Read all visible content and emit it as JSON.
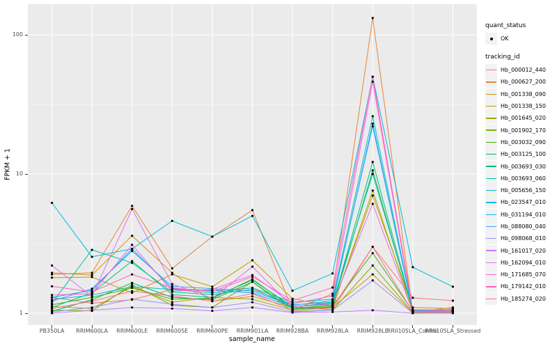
{
  "chart": {
    "y_axis_title": "FPKM + 1",
    "x_axis_title": "sample_name"
  },
  "legend": {
    "quant_status_title": "quant_status",
    "quant_status_items": [
      {
        "label": "OK",
        "marker": "point-icon"
      }
    ],
    "tracking_id_title": "tracking_id"
  },
  "chart_data": {
    "type": "line",
    "title": "",
    "xlabel": "sample_name",
    "ylabel": "FPKM + 1",
    "y_scale": "log10",
    "y_ticks": [
      1,
      10,
      100
    ],
    "minor_y_ticks": [
      3.162,
      31.62
    ],
    "ylim": [
      0.83,
      160
    ],
    "grid": true,
    "legend_position": "right",
    "panel_bg": "#EBEBEB",
    "grid_color": "#FFFFFF",
    "tick_text_color": "#4D4D4D",
    "point_color": "#000000",
    "quant_status": "OK",
    "categories": [
      "PB350LA",
      "RRIM600LA",
      "RRIM600LE",
      "RRIM600SE",
      "RRIM600PE",
      "RRIM901LA",
      "RRIM928BA",
      "RRIM928LA",
      "RRIM928LE",
      "RRII105LA_Control",
      "RRII105LA_Stressed"
    ],
    "series": [
      {
        "name": "Hb_000012_440",
        "color": "#F8766D",
        "values": [
          1.3,
          1.18,
          1.25,
          1.48,
          1.45,
          1.52,
          1.1,
          1.06,
          3.0,
          1.29,
          1.23
        ]
      },
      {
        "name": "Hb_000627_200",
        "color": "#EA8331",
        "values": [
          1.9,
          1.95,
          5.9,
          2.1,
          3.55,
          5.5,
          1.05,
          1.38,
          132,
          1.02,
          1.06
        ]
      },
      {
        "name": "Hb_001338_090",
        "color": "#D89000",
        "values": [
          1.95,
          1.88,
          3.6,
          1.95,
          1.22,
          1.32,
          1.1,
          1.1,
          1.9,
          1.01,
          1.1
        ]
      },
      {
        "name": "Hb_001338_150",
        "color": "#C09B00",
        "values": [
          1.8,
          1.82,
          1.4,
          1.9,
          1.55,
          2.4,
          1.27,
          1.12,
          7.0,
          1.1,
          1.08
        ]
      },
      {
        "name": "Hb_001645_020",
        "color": "#A3A500",
        "values": [
          1.12,
          1.08,
          1.55,
          1.2,
          1.3,
          1.26,
          1.05,
          1.09,
          7.6,
          1.02,
          1.03
        ]
      },
      {
        "name": "Hb_001902_170",
        "color": "#7CAE00",
        "values": [
          1.05,
          1.04,
          1.6,
          1.14,
          1.1,
          1.68,
          1.03,
          1.05,
          2.2,
          1.01,
          1.02
        ]
      },
      {
        "name": "Hb_003032_090",
        "color": "#39B600",
        "values": [
          1.15,
          1.3,
          1.52,
          1.26,
          1.28,
          1.76,
          1.09,
          1.13,
          2.7,
          1.03,
          1.04
        ]
      },
      {
        "name": "Hb_003125_100",
        "color": "#00BB4E",
        "values": [
          1.03,
          1.25,
          1.65,
          1.3,
          1.25,
          1.68,
          1.07,
          1.11,
          10.6,
          1.04,
          1.03
        ]
      },
      {
        "name": "Hb_003693_030",
        "color": "#00BF7D",
        "values": [
          1.1,
          1.4,
          2.37,
          1.36,
          1.3,
          1.73,
          1.12,
          1.15,
          12.2,
          1.05,
          1.04
        ]
      },
      {
        "name": "Hb_003693_060",
        "color": "#00C1A3",
        "values": [
          1.18,
          2.85,
          2.3,
          1.42,
          1.36,
          1.48,
          1.15,
          1.2,
          10.0,
          1.06,
          1.05
        ]
      },
      {
        "name": "Hb_005656_150",
        "color": "#00BFC4",
        "values": [
          1.25,
          1.35,
          1.55,
          1.48,
          1.4,
          1.52,
          1.2,
          1.26,
          26.0,
          1.05,
          1.06
        ]
      },
      {
        "name": "Hb_023547_010",
        "color": "#00BAE0",
        "values": [
          6.2,
          2.54,
          2.9,
          4.6,
          3.55,
          5.0,
          1.45,
          1.93,
          50.0,
          2.14,
          1.55
        ]
      },
      {
        "name": "Hb_031194_010",
        "color": "#00B0F6",
        "values": [
          1.3,
          1.46,
          2.9,
          1.5,
          1.46,
          1.4,
          1.11,
          1.19,
          23.0,
          1.04,
          1.05
        ]
      },
      {
        "name": "Hb_088080_040",
        "color": "#35A2FF",
        "values": [
          1.22,
          1.5,
          2.8,
          1.56,
          1.5,
          1.44,
          1.14,
          1.23,
          22.0,
          1.05,
          1.06
        ]
      },
      {
        "name": "Hb_098068_010",
        "color": "#9590FF",
        "values": [
          1.02,
          1.1,
          1.26,
          1.16,
          1.1,
          1.2,
          1.02,
          1.05,
          1.72,
          1.0,
          1.01
        ]
      },
      {
        "name": "Hb_161017_020",
        "color": "#C77CFF",
        "values": [
          1.0,
          1.05,
          1.1,
          1.08,
          1.04,
          1.1,
          1.01,
          1.02,
          1.05,
          1.0,
          1.0
        ]
      },
      {
        "name": "Hb_162094_010",
        "color": "#E76BF3",
        "values": [
          2.2,
          1.32,
          5.6,
          1.62,
          1.28,
          2.16,
          1.11,
          1.17,
          6.1,
          1.02,
          1.03
        ]
      },
      {
        "name": "Hb_171685_070",
        "color": "#FA62DB",
        "values": [
          1.35,
          1.38,
          3.1,
          1.44,
          1.48,
          1.88,
          1.17,
          1.33,
          46.0,
          1.03,
          1.04
        ]
      },
      {
        "name": "Hb_179142_010",
        "color": "#FF62BC",
        "values": [
          1.56,
          1.42,
          1.9,
          1.52,
          1.43,
          1.83,
          1.23,
          1.53,
          50.0,
          1.06,
          1.05
        ]
      },
      {
        "name": "Hb_185274_020",
        "color": "#FF6A98",
        "values": [
          1.08,
          1.22,
          1.44,
          1.33,
          1.22,
          1.38,
          1.05,
          1.1,
          3.0,
          1.02,
          1.03
        ]
      }
    ]
  }
}
